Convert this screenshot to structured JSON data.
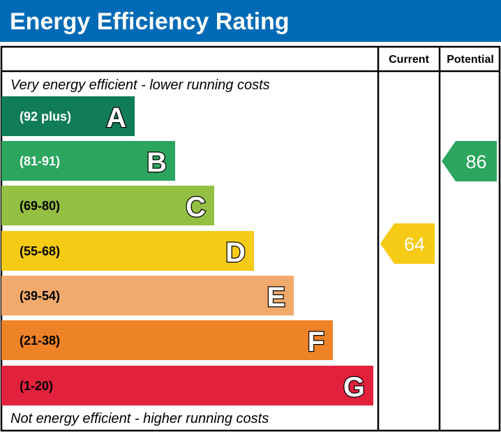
{
  "chart_data": {
    "type": "bar",
    "title": "Energy Efficiency Rating",
    "columns": [
      "Current",
      "Potential"
    ],
    "top_note": "Very energy efficient - lower running costs",
    "bottom_note": "Not energy efficient - higher running costs",
    "bands": [
      {
        "letter": "A",
        "range": "(92 plus)",
        "color": "#117c5a",
        "text_color": "#ffffff"
      },
      {
        "letter": "B",
        "range": "(81-91)",
        "color": "#2ca55f",
        "text_color": "#ffffff"
      },
      {
        "letter": "C",
        "range": "(69-80)",
        "color": "#93bf43",
        "text_color": "#000000"
      },
      {
        "letter": "D",
        "range": "(55-68)",
        "color": "#f6cb16",
        "text_color": "#000000"
      },
      {
        "letter": "E",
        "range": "(39-54)",
        "color": "#f2aa6c",
        "text_color": "#000000"
      },
      {
        "letter": "F",
        "range": "(21-38)",
        "color": "#ee8227",
        "text_color": "#000000"
      },
      {
        "letter": "G",
        "range": "(1-20)",
        "color": "#e2213d",
        "text_color": "#000000"
      }
    ],
    "current": {
      "value": "64",
      "band": "D",
      "color": "#f6cb16"
    },
    "potential": {
      "value": "86",
      "band": "B",
      "color": "#2ca55f"
    },
    "header_color": "#006ab6"
  }
}
